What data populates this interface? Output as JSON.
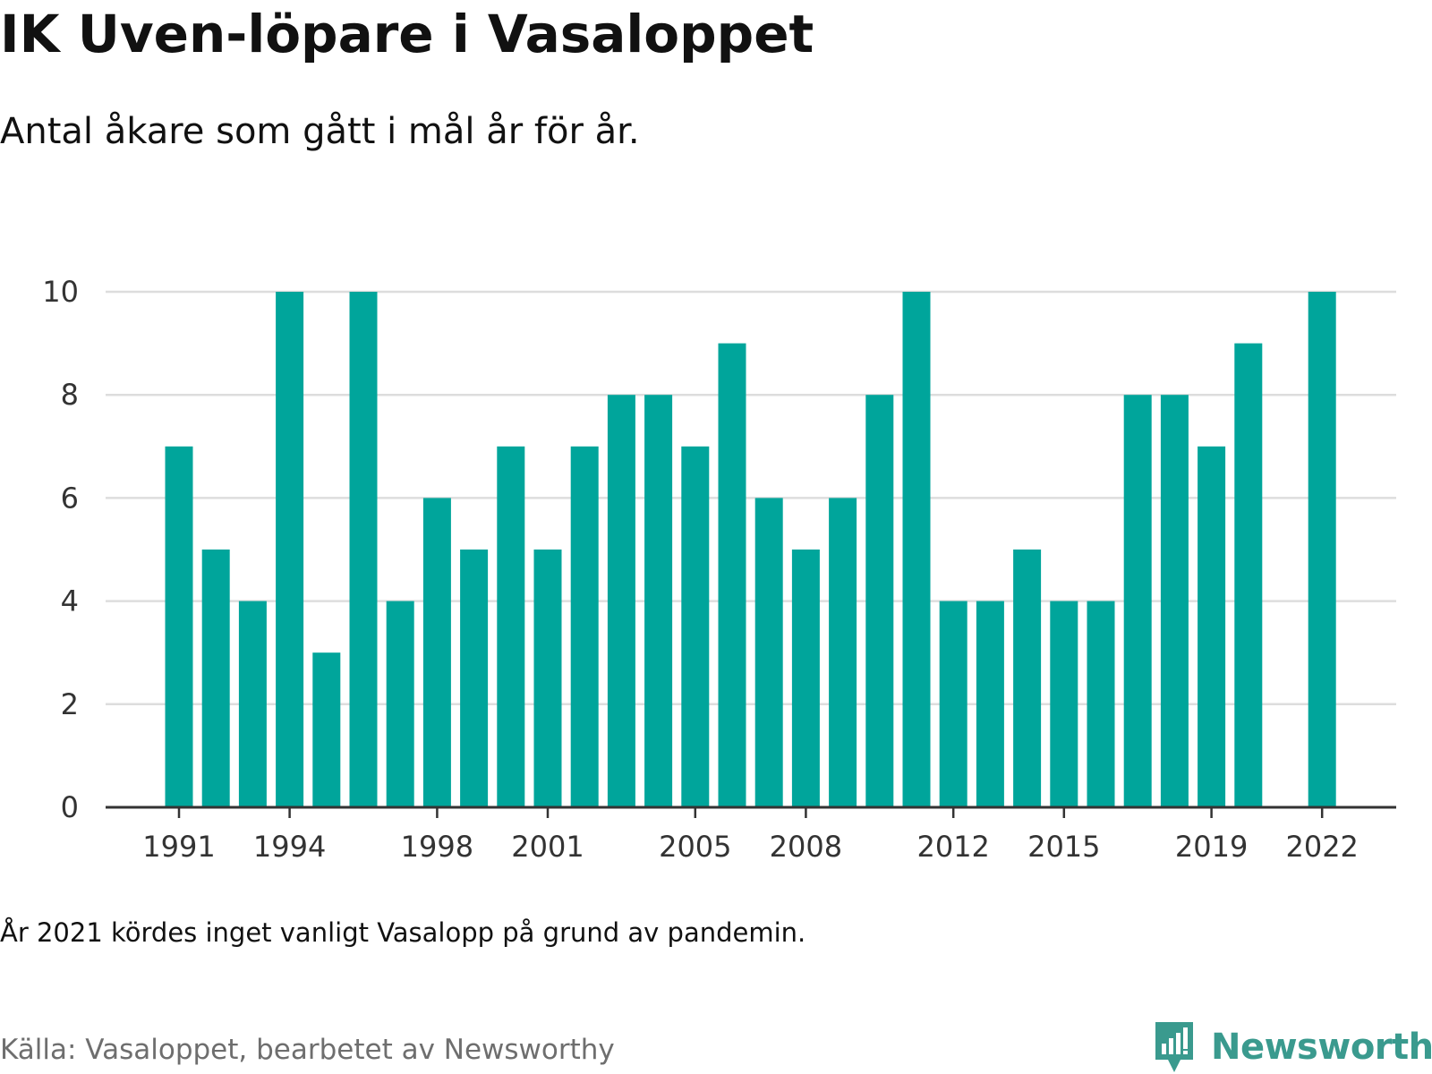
{
  "header": {
    "title": "IK Uven-löpare i Vasaloppet",
    "subtitle": "Antal åkare som gått i mål år för år."
  },
  "footer": {
    "note": "År 2021 kördes inget vanligt Vasalopp på grund av pandemin.",
    "source": "Källa: Vasaloppet, bearbetet av Newsworthy",
    "logo_text": "Newsworthy",
    "logo_icon": "newsworthy-bar-chart-icon"
  },
  "colors": {
    "bar": "#00a59b",
    "grid": "#dddddd",
    "axis": "#333333",
    "logo": "#3a9a8e"
  },
  "chart_data": {
    "type": "bar",
    "title": "IK Uven-löpare i Vasaloppet",
    "subtitle": "Antal åkare som gått i mål år för år.",
    "xlabel": "",
    "ylabel": "",
    "x": [
      1991,
      1992,
      1993,
      1994,
      1995,
      1996,
      1997,
      1998,
      1999,
      2000,
      2001,
      2002,
      2003,
      2004,
      2005,
      2006,
      2007,
      2008,
      2009,
      2010,
      2011,
      2012,
      2013,
      2014,
      2015,
      2016,
      2017,
      2018,
      2019,
      2020,
      2021,
      2022
    ],
    "values": [
      7,
      5,
      4,
      10,
      3,
      10,
      4,
      6,
      5,
      7,
      5,
      7,
      8,
      8,
      7,
      9,
      6,
      5,
      6,
      8,
      10,
      4,
      4,
      5,
      4,
      4,
      8,
      8,
      7,
      9,
      null,
      10
    ],
    "x_ticks": [
      1991,
      1994,
      1998,
      2001,
      2005,
      2008,
      2012,
      2015,
      2019,
      2022
    ],
    "y_ticks": [
      0,
      2,
      4,
      6,
      8,
      10
    ],
    "ylim": [
      0,
      10
    ],
    "grid": true,
    "legend": "none"
  }
}
